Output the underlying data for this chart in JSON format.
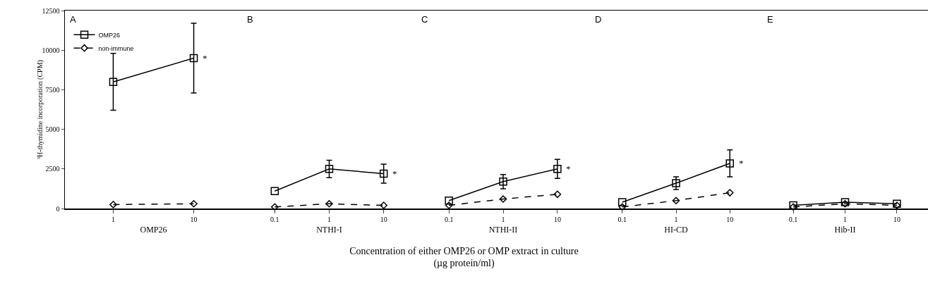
{
  "chart_data": [
    {
      "type": "line",
      "title": "A",
      "xlabel": "OMP26",
      "ylabel": "³H-thymidine incorporation (CPM)",
      "categories": [
        "1",
        "10"
      ],
      "ylim": [
        0,
        12500
      ],
      "yticks": [
        0,
        2500,
        5000,
        7500,
        10000,
        12500
      ],
      "legend": "top left",
      "grid": false,
      "annotations": [
        {
          "text": "*",
          "x": "10",
          "y": 9500
        },
        "Concentration of either OMP26 or OMP extract in culture\n(µg protein/ml)"
      ],
      "series": [
        {
          "name": "OMP26",
          "color": "#000000",
          "marker": "square",
          "line_style": "solid",
          "values": [
            8000,
            9500
          ],
          "errors": [
            1800,
            2200
          ]
        },
        {
          "name": "non-immune",
          "color": "#000000",
          "marker": "diamond",
          "line_style": "dashed",
          "values": [
            250,
            300
          ]
        }
      ]
    },
    {
      "type": "line",
      "title": "B",
      "xlabel": "NTHI-I",
      "categories": [
        "0.1",
        "1",
        "10"
      ],
      "ylim": [
        0,
        12500
      ],
      "yticks": [
        0,
        2500,
        5000,
        7500,
        10000,
        12500
      ],
      "tick_labels": "x",
      "grid": false,
      "annotations": [
        {
          "text": "*",
          "x": "10",
          "y": 2200
        }
      ],
      "series": [
        {
          "color": "#000000",
          "marker": "square",
          "line_style": "solid",
          "values": [
            1100,
            2500,
            2200
          ],
          "errors": [
            null,
            550,
            600
          ]
        },
        {
          "color": "#000000",
          "marker": "diamond",
          "line_style": "dashed",
          "values": [
            100,
            300,
            200
          ]
        }
      ]
    },
    {
      "type": "line",
      "title": "C",
      "xlabel": "NTHI-II",
      "categories": [
        "0.1",
        "1",
        "10"
      ],
      "ylim": [
        0,
        12500
      ],
      "yticks": [
        0,
        2500,
        5000,
        7500,
        10000,
        12500
      ],
      "tick_labels": "x",
      "grid": false,
      "annotations": [
        {
          "text": "*",
          "x": "10",
          "y": 2500
        }
      ],
      "series": [
        {
          "color": "#000000",
          "marker": "square",
          "line_style": "solid",
          "values": [
            500,
            1700,
            2500
          ],
          "errors": [
            null,
            450,
            600
          ]
        },
        {
          "color": "#000000",
          "marker": "diamond",
          "line_style": "dashed",
          "values": [
            200,
            600,
            900
          ]
        }
      ]
    },
    {
      "type": "line",
      "title": "D",
      "xlabel": "HI-CD",
      "categories": [
        "0.1",
        "1",
        "10"
      ],
      "ylim": [
        0,
        12500
      ],
      "yticks": [
        0,
        2500,
        5000,
        7500,
        10000,
        12500
      ],
      "tick_labels": "x",
      "grid": false,
      "annotations": [
        {
          "text": "*",
          "x": "10",
          "y": 2850
        }
      ],
      "series": [
        {
          "color": "#000000",
          "marker": "square",
          "line_style": "solid",
          "values": [
            400,
            1600,
            2850
          ],
          "errors": [
            null,
            400,
            850
          ]
        },
        {
          "color": "#000000",
          "marker": "diamond",
          "line_style": "dashed",
          "values": [
            100,
            500,
            1000
          ]
        }
      ]
    },
    {
      "type": "line",
      "title": "E",
      "xlabel": "Hib-II",
      "categories": [
        "0.1",
        "1",
        "10"
      ],
      "ylim": [
        0,
        12500
      ],
      "yticks": [
        0,
        2500,
        5000,
        7500,
        10000,
        12500
      ],
      "tick_labels": "x",
      "grid": false,
      "series": [
        {
          "color": "#000000",
          "marker": "square",
          "line_style": "solid",
          "values": [
            200,
            400,
            300
          ]
        },
        {
          "color": "#000000",
          "marker": "diamond",
          "line_style": "dashed",
          "values": [
            100,
            300,
            200
          ]
        }
      ]
    }
  ]
}
